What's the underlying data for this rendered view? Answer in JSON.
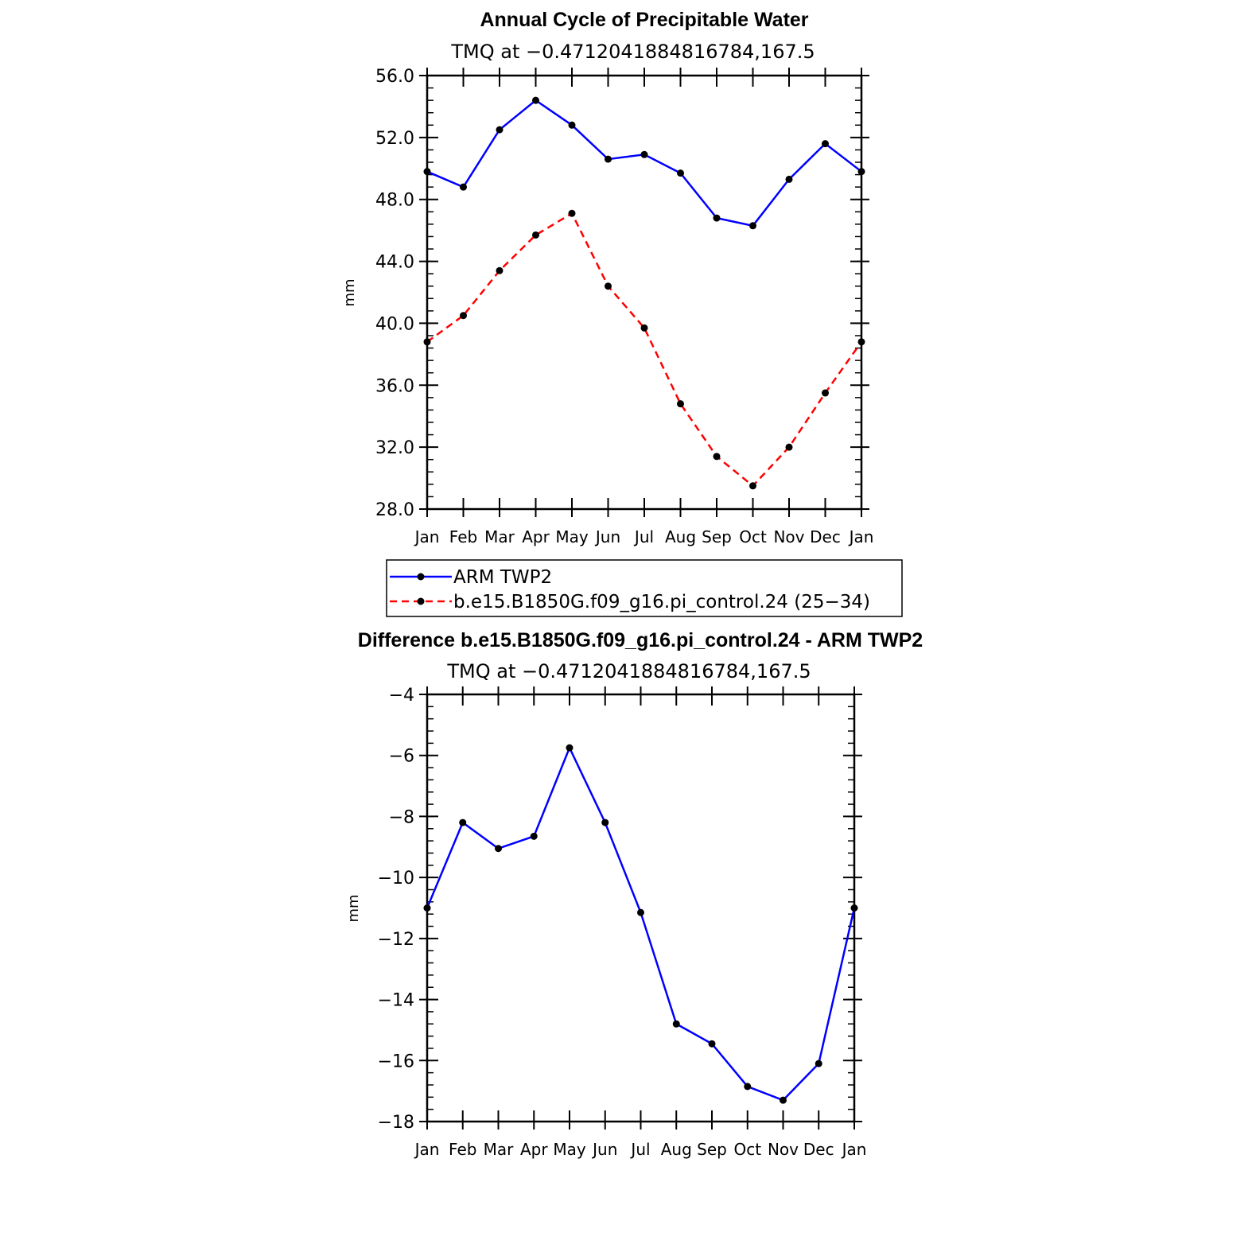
{
  "chart_data": [
    {
      "type": "line",
      "title": "Annual Cycle of Precipitable Water",
      "subtitle": "TMQ at −0.4712041884816784,167.5",
      "ylabel": "mm",
      "xlabel": "",
      "categories": [
        "Jan",
        "Feb",
        "Mar",
        "Apr",
        "May",
        "Jun",
        "Jul",
        "Aug",
        "Sep",
        "Oct",
        "Nov",
        "Dec",
        "Jan"
      ],
      "ylim": [
        28.0,
        56.0
      ],
      "yticks": [
        "28.0",
        "32.0",
        "36.0",
        "40.0",
        "44.0",
        "48.0",
        "52.0",
        "56.0"
      ],
      "ytick_values": [
        28,
        32,
        36,
        40,
        44,
        48,
        52,
        56
      ],
      "series": [
        {
          "name": "ARM TWP2",
          "color": "#0000ff",
          "dash": "solid",
          "values": [
            49.8,
            48.8,
            52.5,
            54.4,
            52.8,
            50.6,
            50.9,
            49.7,
            46.8,
            46.3,
            49.3,
            51.6,
            49.8
          ]
        },
        {
          "name": "b.e15.B1850G.f09_g16.pi_control.24 (25−34)",
          "color": "#ff0000",
          "dash": "dashed",
          "values": [
            38.8,
            40.5,
            43.4,
            45.7,
            47.1,
            42.4,
            39.7,
            34.8,
            31.4,
            29.5,
            32.0,
            35.5,
            38.8
          ]
        }
      ],
      "legend": "below"
    },
    {
      "type": "line",
      "title": "Difference b.e15.B1850G.f09_g16.pi_control.24 - ARM TWP2",
      "subtitle": "TMQ at −0.4712041884816784,167.5",
      "ylabel": "mm",
      "xlabel": "",
      "categories": [
        "Jan",
        "Feb",
        "Mar",
        "Apr",
        "May",
        "Jun",
        "Jul",
        "Aug",
        "Sep",
        "Oct",
        "Nov",
        "Dec",
        "Jan"
      ],
      "ylim": [
        -18,
        -4
      ],
      "yticks": [
        "−18",
        "−16",
        "−14",
        "−12",
        "−10",
        "−8",
        "−6",
        "−4"
      ],
      "ytick_values": [
        -18,
        -16,
        -14,
        -12,
        -10,
        -8,
        -6,
        -4
      ],
      "series": [
        {
          "color": "#0000ff",
          "dash": "solid",
          "values": [
            -11.0,
            -8.2,
            -9.05,
            -8.65,
            -5.75,
            -8.2,
            -11.15,
            -14.8,
            -15.45,
            -16.85,
            -17.3,
            -16.1,
            -11.0
          ]
        }
      ]
    }
  ]
}
